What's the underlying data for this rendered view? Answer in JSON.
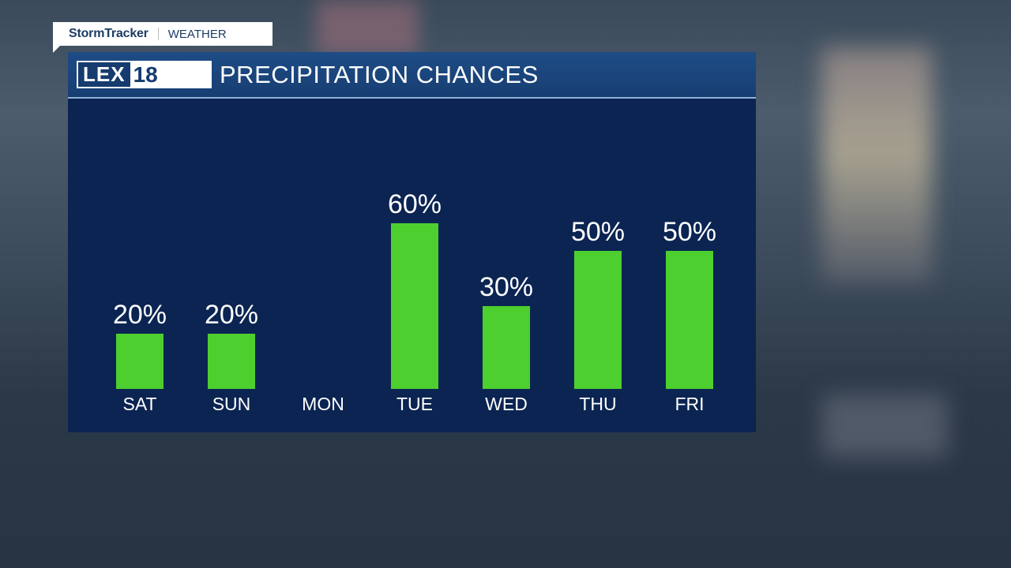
{
  "branding": {
    "tag_left": "StormTracker",
    "tag_right": "WEATHER",
    "logo": "LEX18",
    "bar_color": "#4ccf2f",
    "panel_color": "#0b2452"
  },
  "chart_data": {
    "type": "bar",
    "title": "PRECIPITATION CHANCES",
    "categories": [
      "SAT",
      "SUN",
      "MON",
      "TUE",
      "WED",
      "THU",
      "FRI"
    ],
    "values": [
      20,
      20,
      0,
      60,
      30,
      50,
      50
    ],
    "value_labels": [
      "20%",
      "20%",
      "",
      "60%",
      "30%",
      "50%",
      "50%"
    ],
    "unit": "%",
    "ylim": [
      0,
      100
    ],
    "grid": false
  }
}
